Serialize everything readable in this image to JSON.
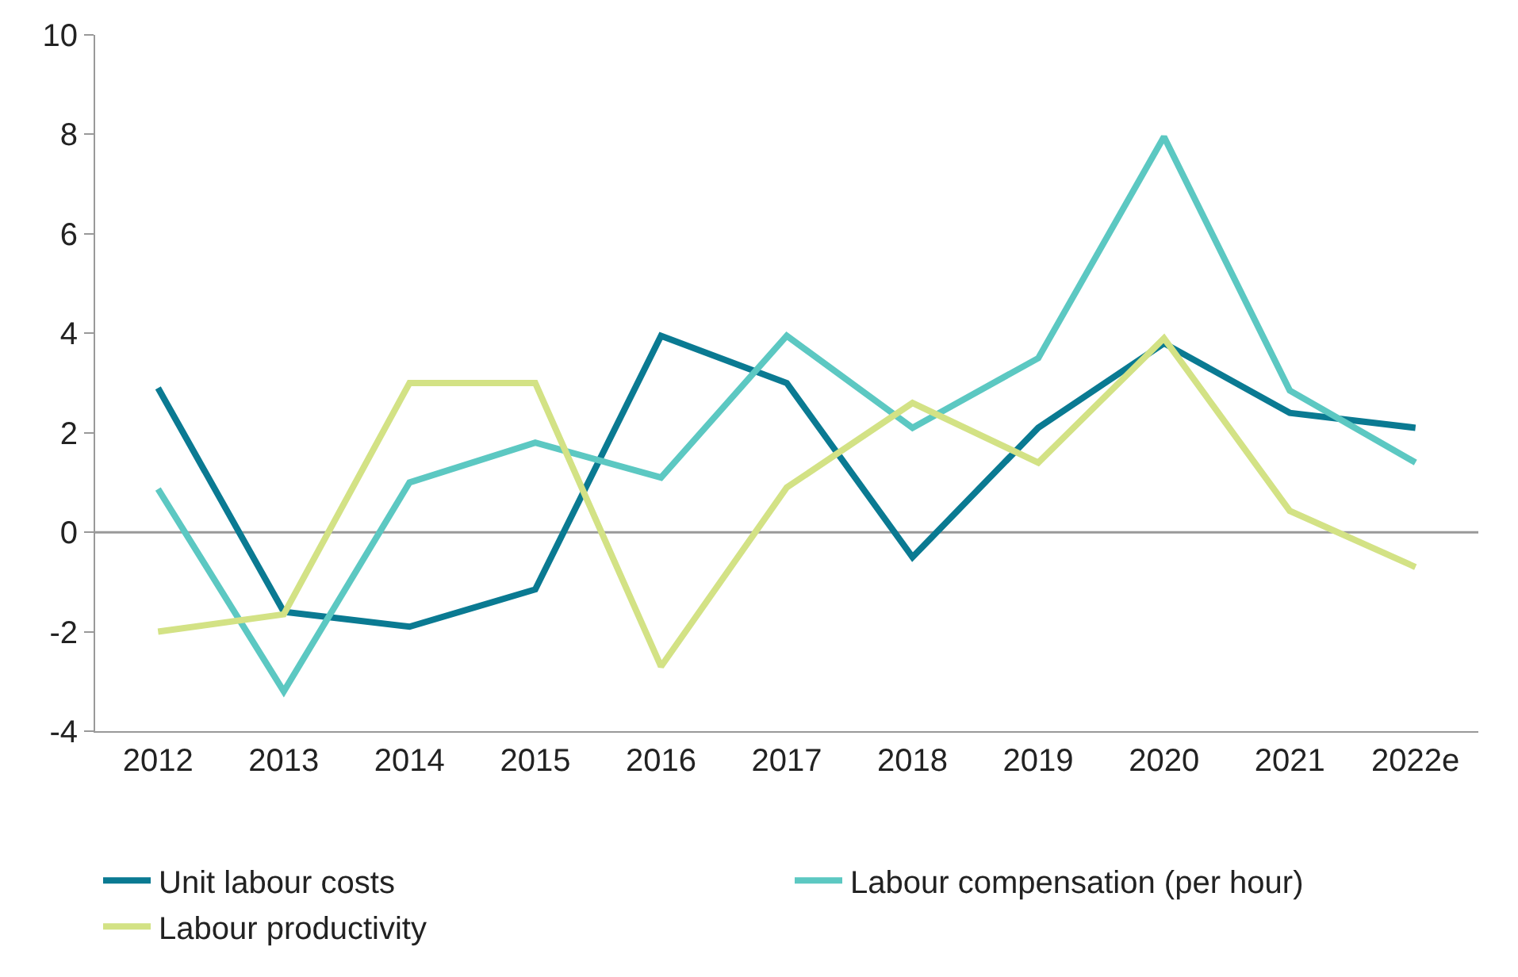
{
  "chart_data": {
    "type": "line",
    "categories": [
      "2012",
      "2013",
      "2014",
      "2015",
      "2016",
      "2017",
      "2018",
      "2019",
      "2020",
      "2021",
      "2022e"
    ],
    "series": [
      {
        "name": "Unit labour costs",
        "color": "#0a7a92",
        "values": [
          2.9,
          -1.6,
          -1.9,
          -1.15,
          3.95,
          3.0,
          -0.5,
          2.1,
          3.8,
          2.4,
          2.1
        ]
      },
      {
        "name": "Labour compensation (per hour)",
        "color": "#5cc8c2",
        "values": [
          0.87,
          -3.2,
          1.0,
          1.8,
          1.1,
          3.95,
          2.1,
          3.5,
          7.95,
          2.85,
          1.4
        ]
      },
      {
        "name": "Labour productivity",
        "color": "#d3e285",
        "values": [
          -2.0,
          -1.65,
          3.0,
          3.0,
          -2.7,
          0.9,
          2.6,
          1.4,
          3.9,
          0.43,
          -0.7
        ]
      }
    ],
    "ylim": [
      -4,
      10
    ],
    "yticks": [
      -4,
      -2,
      0,
      2,
      4,
      6,
      8,
      10
    ],
    "grid": false,
    "ref_lines": [
      {
        "axis": "y",
        "value": 0
      }
    ],
    "legend": "bottom",
    "marker": "none",
    "line_style": "solid"
  }
}
